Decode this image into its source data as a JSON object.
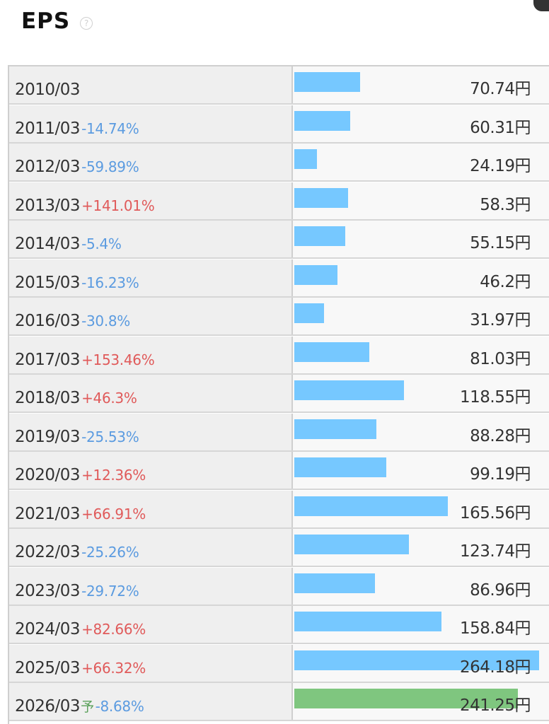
{
  "chart_data": {
    "type": "bar",
    "title": "EPS",
    "help_icon": "question-circle-icon",
    "unit": "円",
    "forecast_marker": "予",
    "colors": {
      "bar": "#76c8ff",
      "forecast_bar": "#7fc67f",
      "increase": "#e05a5a",
      "decrease": "#5b9be0"
    },
    "rows": [
      {
        "period": "2010/03",
        "change": "",
        "value": 70.74,
        "value_label": "70.74"
      },
      {
        "period": "2011/03",
        "change": "-14.74%",
        "value": 60.31,
        "value_label": "60.31"
      },
      {
        "period": "2012/03",
        "change": "-59.89%",
        "value": 24.19,
        "value_label": "24.19"
      },
      {
        "period": "2013/03",
        "change": "+141.01%",
        "value": 58.3,
        "value_label": "58.3"
      },
      {
        "period": "2014/03",
        "change": "-5.4%",
        "value": 55.15,
        "value_label": "55.15"
      },
      {
        "period": "2015/03",
        "change": "-16.23%",
        "value": 46.2,
        "value_label": "46.2"
      },
      {
        "period": "2016/03",
        "change": "-30.8%",
        "value": 31.97,
        "value_label": "31.97"
      },
      {
        "period": "2017/03",
        "change": "+153.46%",
        "value": 81.03,
        "value_label": "81.03"
      },
      {
        "period": "2018/03",
        "change": "+46.3%",
        "value": 118.55,
        "value_label": "118.55"
      },
      {
        "period": "2019/03",
        "change": "-25.53%",
        "value": 88.28,
        "value_label": "88.28"
      },
      {
        "period": "2020/03",
        "change": "+12.36%",
        "value": 99.19,
        "value_label": "99.19"
      },
      {
        "period": "2021/03",
        "change": "+66.91%",
        "value": 165.56,
        "value_label": "165.56"
      },
      {
        "period": "2022/03",
        "change": "-25.26%",
        "value": 123.74,
        "value_label": "123.74"
      },
      {
        "period": "2023/03",
        "change": "-29.72%",
        "value": 86.96,
        "value_label": "86.96"
      },
      {
        "period": "2024/03",
        "change": "+82.66%",
        "value": 158.84,
        "value_label": "158.84"
      },
      {
        "period": "2025/03",
        "change": "+66.32%",
        "value": 264.18,
        "value_label": "264.18"
      },
      {
        "period": "2026/03",
        "change": "-8.68%",
        "value": 241.25,
        "value_label": "241.25",
        "forecast": true
      }
    ],
    "xlim": [
      0,
      264.18
    ]
  }
}
